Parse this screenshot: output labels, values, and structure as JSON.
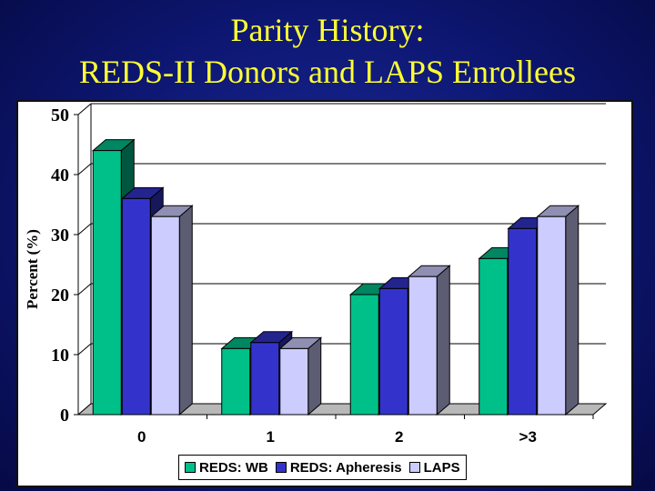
{
  "slide": {
    "title_line1": "Parity History:",
    "title_line2": "REDS-II Donors and LAPS Enrollees"
  },
  "colors": {
    "background": "#0d1670",
    "title": "#ffff33",
    "series": [
      "#00c08a",
      "#3333cc",
      "#ccccff"
    ]
  },
  "chart_data": {
    "type": "bar",
    "title": "Parity History: REDS-II Donors and LAPS Enrollees",
    "xlabel": "",
    "ylabel": "Percent (%)",
    "categories": [
      "0",
      "1",
      "2",
      ">3"
    ],
    "series": [
      {
        "name": "REDS: WB",
        "values": [
          44,
          11,
          20,
          26
        ]
      },
      {
        "name": "REDS: Apheresis",
        "values": [
          36,
          12,
          21,
          31
        ]
      },
      {
        "name": "LAPS",
        "values": [
          33,
          11,
          23,
          33
        ]
      }
    ],
    "ylim": [
      0,
      50
    ],
    "yticks": [
      0,
      10,
      20,
      30,
      40,
      50
    ],
    "grid": true,
    "legend_position": "bottom"
  }
}
